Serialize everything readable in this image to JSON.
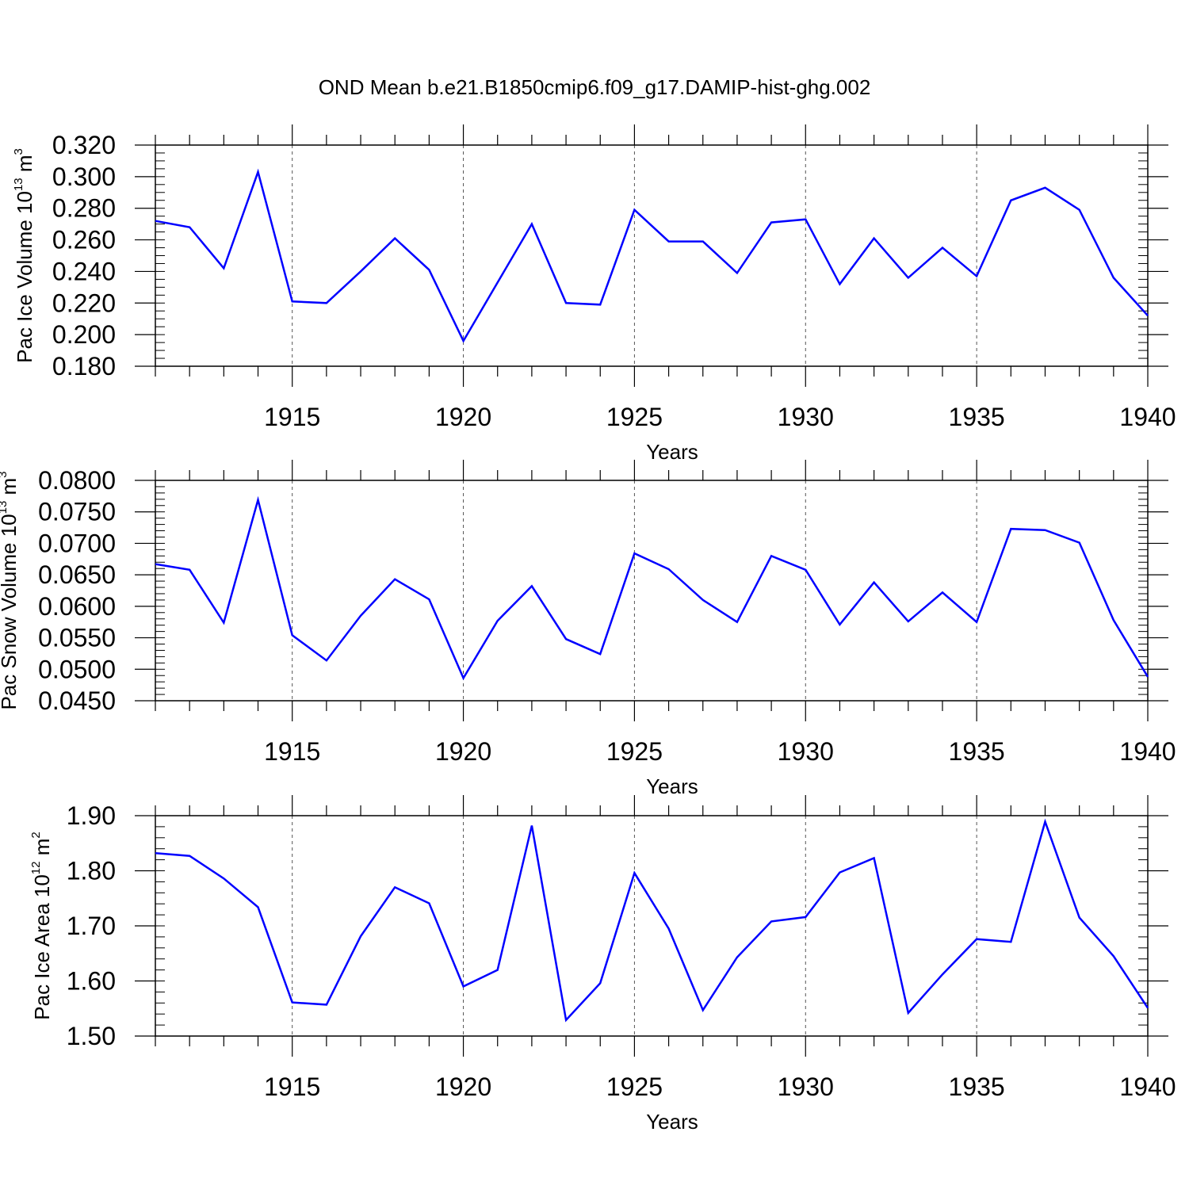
{
  "title": "OND Mean b.e21.B1850cmip6.f09_g17.DAMIP-hist-ghg.002",
  "line_color": "#0000ff",
  "chart_data": [
    {
      "type": "line",
      "name": "pac-ice-volume",
      "ylabel_main": "Pac Ice Volume 10",
      "ylabel_exp": "13",
      "ylabel_unit": " m",
      "ylabel_unit_exp": "3",
      "xlabel": "Years",
      "xlim": [
        1911,
        1940
      ],
      "ylim": [
        0.18,
        0.32
      ],
      "x_ticks": [
        1915,
        1920,
        1925,
        1930,
        1935,
        1940
      ],
      "y_ticks": [
        0.18,
        0.2,
        0.22,
        0.24,
        0.26,
        0.28,
        0.3,
        0.32
      ],
      "y_tick_labels": [
        "0.180",
        "0.200",
        "0.220",
        "0.240",
        "0.260",
        "0.280",
        "0.300",
        "0.320"
      ],
      "y_minor_step": 0.005,
      "x": [
        1911,
        1912,
        1913,
        1914,
        1915,
        1916,
        1917,
        1918,
        1919,
        1920,
        1921,
        1922,
        1923,
        1924,
        1925,
        1926,
        1927,
        1928,
        1929,
        1930,
        1931,
        1932,
        1933,
        1934,
        1935,
        1936,
        1937,
        1938,
        1939,
        1940
      ],
      "values": [
        0.272,
        0.268,
        0.242,
        0.303,
        0.221,
        0.22,
        0.24,
        0.261,
        0.241,
        0.196,
        0.233,
        0.27,
        0.22,
        0.219,
        0.279,
        0.259,
        0.259,
        0.239,
        0.271,
        0.273,
        0.232,
        0.261,
        0.236,
        0.255,
        0.237,
        0.285,
        0.293,
        0.279,
        0.236,
        0.212
      ]
    },
    {
      "type": "line",
      "name": "pac-snow-volume",
      "ylabel_main": "Pac Snow Volume 10",
      "ylabel_exp": "13",
      "ylabel_unit": " m",
      "ylabel_unit_exp": "3",
      "xlabel": "Years",
      "xlim": [
        1911,
        1940
      ],
      "ylim": [
        0.045,
        0.08
      ],
      "x_ticks": [
        1915,
        1920,
        1925,
        1930,
        1935,
        1940
      ],
      "y_ticks": [
        0.045,
        0.05,
        0.055,
        0.06,
        0.065,
        0.07,
        0.075,
        0.08
      ],
      "y_tick_labels": [
        "0.0450",
        "0.0500",
        "0.0550",
        "0.0600",
        "0.0650",
        "0.0700",
        "0.0750",
        "0.0800"
      ],
      "y_minor_step": 0.001,
      "x": [
        1911,
        1912,
        1913,
        1914,
        1915,
        1916,
        1917,
        1918,
        1919,
        1920,
        1921,
        1922,
        1923,
        1924,
        1925,
        1926,
        1927,
        1928,
        1929,
        1930,
        1931,
        1932,
        1933,
        1934,
        1935,
        1936,
        1937,
        1938,
        1939,
        1940
      ],
      "values": [
        0.0667,
        0.0658,
        0.0574,
        0.0769,
        0.0554,
        0.0514,
        0.0585,
        0.0643,
        0.0611,
        0.0486,
        0.0577,
        0.0632,
        0.0548,
        0.0524,
        0.0684,
        0.0659,
        0.061,
        0.0575,
        0.068,
        0.0658,
        0.0571,
        0.0638,
        0.0576,
        0.0622,
        0.0575,
        0.0723,
        0.0721,
        0.0701,
        0.0578,
        0.0488
      ]
    },
    {
      "type": "line",
      "name": "pac-ice-area",
      "ylabel_main": "Pac Ice Area 10",
      "ylabel_exp": "12",
      "ylabel_unit": " m",
      "ylabel_unit_exp": "2",
      "xlabel": "Years",
      "xlim": [
        1911,
        1940
      ],
      "ylim": [
        1.5,
        1.9
      ],
      "x_ticks": [
        1915,
        1920,
        1925,
        1930,
        1935,
        1940
      ],
      "y_ticks": [
        1.5,
        1.6,
        1.7,
        1.8,
        1.9
      ],
      "y_tick_labels": [
        "1.50",
        "1.60",
        "1.70",
        "1.80",
        "1.90"
      ],
      "y_minor_step": 0.02,
      "x": [
        1911,
        1912,
        1913,
        1914,
        1915,
        1916,
        1917,
        1918,
        1919,
        1920,
        1921,
        1922,
        1923,
        1924,
        1925,
        1926,
        1927,
        1928,
        1929,
        1930,
        1931,
        1932,
        1933,
        1934,
        1935,
        1936,
        1937,
        1938,
        1939,
        1940
      ],
      "values": [
        1.832,
        1.827,
        1.786,
        1.734,
        1.561,
        1.557,
        1.681,
        1.77,
        1.741,
        1.59,
        1.62,
        1.882,
        1.529,
        1.596,
        1.796,
        1.695,
        1.547,
        1.643,
        1.708,
        1.716,
        1.797,
        1.823,
        1.542,
        1.612,
        1.676,
        1.671,
        1.889,
        1.715,
        1.645,
        1.551
      ]
    }
  ]
}
